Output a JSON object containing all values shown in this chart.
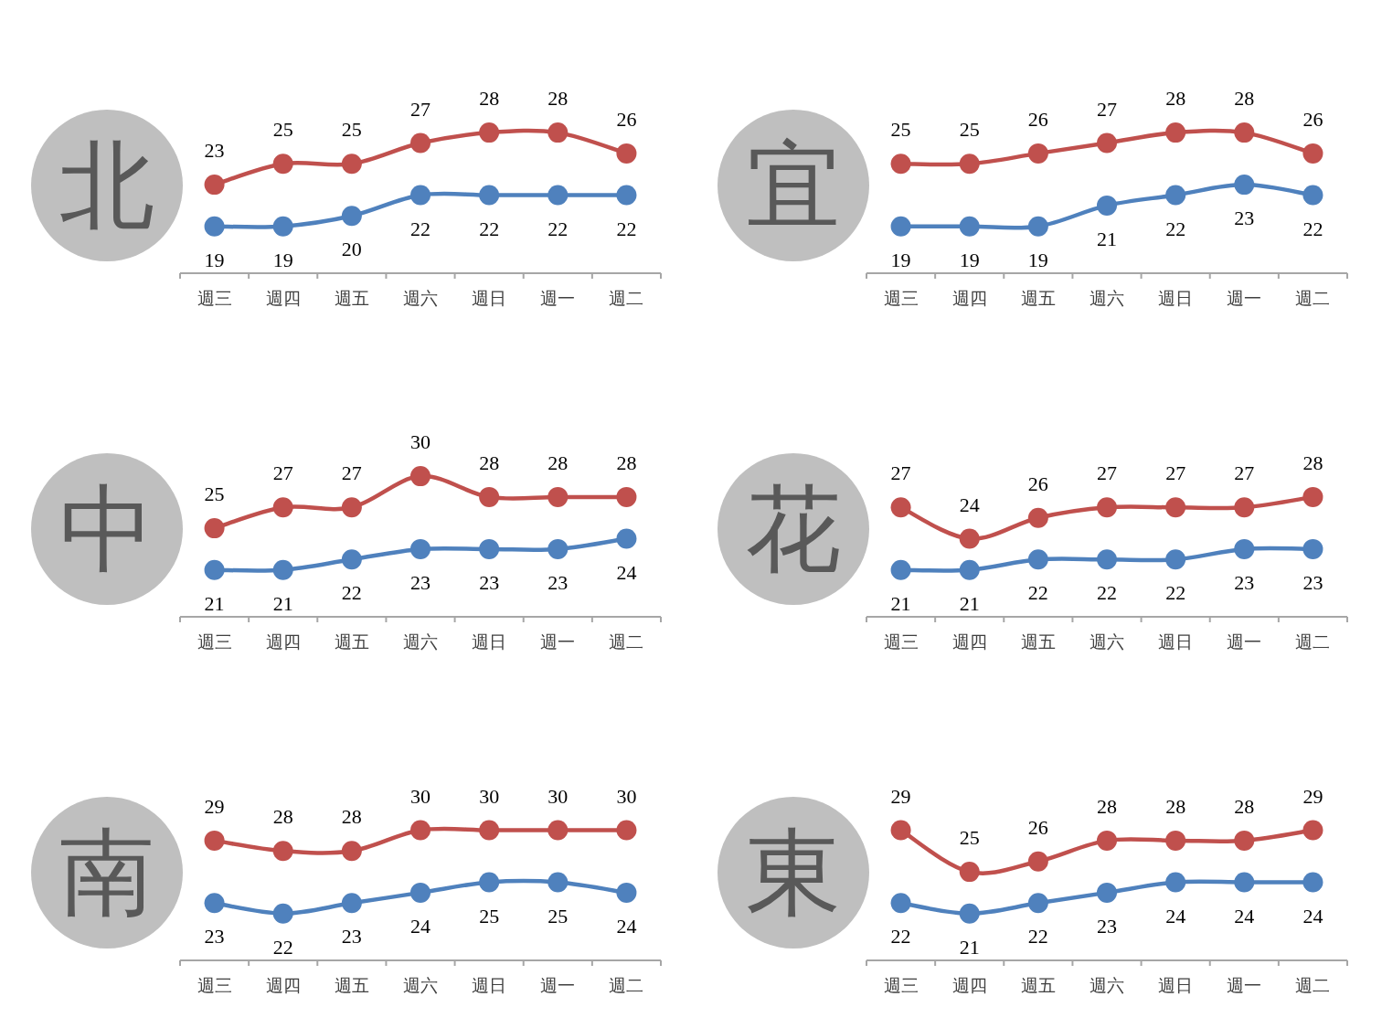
{
  "chart_data": [
    {
      "type": "line",
      "title": "北",
      "categories": [
        "週三",
        "週四",
        "週五",
        "週六",
        "週日",
        "週一",
        "週二"
      ],
      "marker": "circle",
      "data_labels": true,
      "series": [
        {
          "color": "#c0504d",
          "values": [
            23,
            25,
            25,
            27,
            28,
            28,
            26
          ]
        },
        {
          "color": "#4f81bd",
          "values": [
            19,
            19,
            20,
            22,
            22,
            22,
            22
          ]
        }
      ]
    },
    {
      "type": "line",
      "title": "宜",
      "categories": [
        "週三",
        "週四",
        "週五",
        "週六",
        "週日",
        "週一",
        "週二"
      ],
      "marker": "circle",
      "data_labels": true,
      "series": [
        {
          "color": "#c0504d",
          "values": [
            25,
            25,
            26,
            27,
            28,
            28,
            26
          ]
        },
        {
          "color": "#4f81bd",
          "values": [
            19,
            19,
            19,
            21,
            22,
            23,
            22
          ]
        }
      ]
    },
    {
      "type": "line",
      "title": "中",
      "categories": [
        "週三",
        "週四",
        "週五",
        "週六",
        "週日",
        "週一",
        "週二"
      ],
      "marker": "circle",
      "data_labels": true,
      "series": [
        {
          "color": "#c0504d",
          "values": [
            25,
            27,
            27,
            30,
            28,
            28,
            28
          ]
        },
        {
          "color": "#4f81bd",
          "values": [
            21,
            21,
            22,
            23,
            23,
            23,
            24
          ]
        }
      ]
    },
    {
      "type": "line",
      "title": "花",
      "categories": [
        "週三",
        "週四",
        "週五",
        "週六",
        "週日",
        "週一",
        "週二"
      ],
      "marker": "circle",
      "data_labels": true,
      "series": [
        {
          "color": "#c0504d",
          "values": [
            27,
            24,
            26,
            27,
            27,
            27,
            28
          ]
        },
        {
          "color": "#4f81bd",
          "values": [
            21,
            21,
            22,
            22,
            22,
            23,
            23
          ]
        }
      ]
    },
    {
      "type": "line",
      "title": "南",
      "categories": [
        "週三",
        "週四",
        "週五",
        "週六",
        "週日",
        "週一",
        "週二"
      ],
      "marker": "circle",
      "data_labels": true,
      "series": [
        {
          "color": "#c0504d",
          "values": [
            29,
            28,
            28,
            30,
            30,
            30,
            30
          ]
        },
        {
          "color": "#4f81bd",
          "values": [
            23,
            22,
            23,
            24,
            25,
            25,
            24
          ]
        }
      ]
    },
    {
      "type": "line",
      "title": "東",
      "categories": [
        "週三",
        "週四",
        "週五",
        "週六",
        "週日",
        "週一",
        "週二"
      ],
      "marker": "circle",
      "data_labels": true,
      "series": [
        {
          "color": "#c0504d",
          "values": [
            29,
            25,
            26,
            28,
            28,
            28,
            29
          ]
        },
        {
          "color": "#4f81bd",
          "values": [
            22,
            21,
            22,
            23,
            24,
            24,
            24
          ]
        }
      ]
    }
  ]
}
